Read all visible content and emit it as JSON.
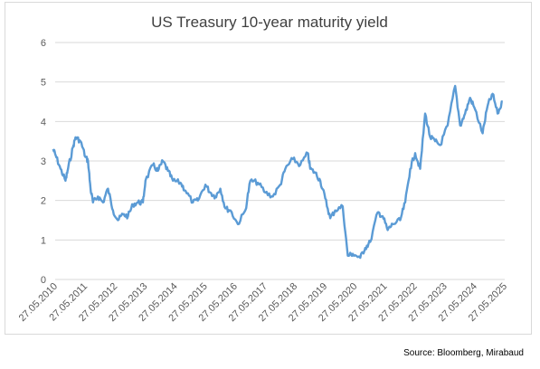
{
  "chart_data": {
    "type": "line",
    "title": "US Treasury 10-year maturity yield",
    "xlabel": "",
    "ylabel": "",
    "ylim": [
      0,
      6
    ],
    "yticks": [
      "0",
      "1",
      "2",
      "3",
      "4",
      "5",
      "6"
    ],
    "xticks": [
      "27.05.2010",
      "27.05.2011",
      "27.05.2012",
      "27.05.2013",
      "27.05.2014",
      "27.05.2015",
      "27.05.2016",
      "27.05.2017",
      "27.05.2018",
      "27.05.2019",
      "27.05.2020",
      "27.05.2021",
      "27.05.2022",
      "27.05.2023",
      "27.05.2024",
      "27.05.2025"
    ],
    "grid": "horizontal",
    "legend": "none",
    "line_color": "#5b9bd5",
    "series": [
      {
        "x": [
          "2010-05",
          "2010-06",
          "2010-08",
          "2010-10",
          "2010-11",
          "2011-01",
          "2011-02",
          "2011-04",
          "2011-06",
          "2011-07",
          "2011-08",
          "2011-09",
          "2011-11",
          "2012-01",
          "2012-03",
          "2012-05",
          "2012-07",
          "2012-09",
          "2012-11",
          "2013-01",
          "2013-03",
          "2013-05",
          "2013-06",
          "2013-09",
          "2013-11",
          "2014-01",
          "2014-03",
          "2014-05",
          "2014-08",
          "2014-10",
          "2015-01",
          "2015-03",
          "2015-06",
          "2015-08",
          "2015-10",
          "2015-12",
          "2016-02",
          "2016-04",
          "2016-07",
          "2016-10",
          "2016-12",
          "2017-03",
          "2017-06",
          "2017-09",
          "2017-12",
          "2018-02",
          "2018-05",
          "2018-08",
          "2018-11",
          "2018-12",
          "2019-02",
          "2019-04",
          "2019-06",
          "2019-08",
          "2019-10",
          "2020-01",
          "2020-03",
          "2020-05",
          "2020-08",
          "2020-10",
          "2020-12",
          "2021-03",
          "2021-05",
          "2021-07",
          "2021-09",
          "2021-12",
          "2022-02",
          "2022-04",
          "2022-06",
          "2022-08",
          "2022-10",
          "2022-12",
          "2023-02",
          "2023-04",
          "2023-07",
          "2023-10",
          "2023-12",
          "2024-02",
          "2024-04",
          "2024-06",
          "2024-09",
          "2024-11",
          "2025-01",
          "2025-03",
          "2025-05"
        ],
        "values": [
          3.3,
          3.15,
          2.8,
          2.5,
          2.8,
          3.35,
          3.6,
          3.5,
          3.1,
          3.0,
          2.3,
          1.95,
          2.1,
          1.95,
          2.3,
          1.75,
          1.5,
          1.65,
          1.6,
          1.9,
          1.95,
          1.95,
          2.5,
          2.9,
          2.75,
          3.0,
          2.75,
          2.5,
          2.45,
          2.25,
          1.95,
          2.0,
          2.4,
          2.2,
          2.1,
          2.3,
          1.8,
          1.75,
          1.4,
          1.75,
          2.5,
          2.45,
          2.2,
          2.1,
          2.4,
          2.8,
          3.05,
          2.9,
          3.2,
          2.8,
          2.7,
          2.5,
          2.05,
          1.55,
          1.75,
          1.85,
          0.6,
          0.65,
          0.55,
          0.8,
          0.95,
          1.7,
          1.6,
          1.25,
          1.4,
          1.5,
          1.95,
          2.8,
          3.2,
          2.8,
          4.2,
          3.6,
          3.5,
          3.4,
          3.9,
          4.9,
          3.9,
          4.2,
          4.6,
          4.3,
          3.7,
          4.4,
          4.7,
          4.2,
          4.5
        ]
      }
    ],
    "source_note": "Source: Bloomberg, Mirabaud"
  }
}
